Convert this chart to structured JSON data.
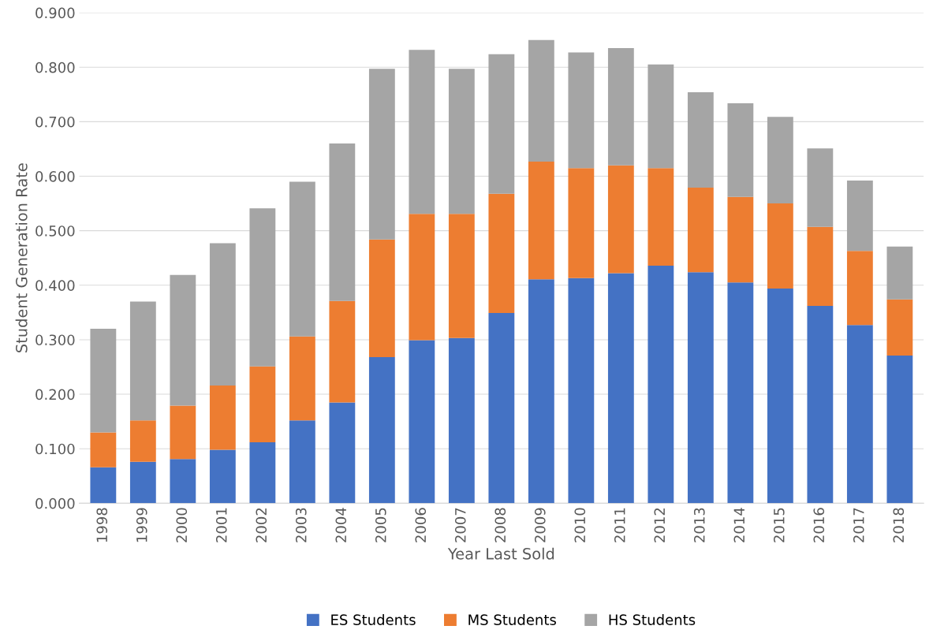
{
  "chart_data": {
    "type": "bar",
    "stacked": true,
    "xlabel": "Year Last Sold",
    "ylabel": "Student Generation Rate",
    "categories": [
      "1998",
      "1999",
      "2000",
      "2001",
      "2002",
      "2003",
      "2004",
      "2005",
      "2006",
      "2007",
      "2008",
      "2009",
      "2010",
      "2011",
      "2012",
      "2013",
      "2014",
      "2015",
      "2016",
      "2017",
      "2018"
    ],
    "series": [
      {
        "name": "ES Students",
        "color": "#4472c4",
        "values": [
          0.066,
          0.076,
          0.081,
          0.098,
          0.112,
          0.152,
          0.185,
          0.268,
          0.299,
          0.303,
          0.349,
          0.411,
          0.413,
          0.422,
          0.436,
          0.424,
          0.405,
          0.394,
          0.362,
          0.327,
          0.271
        ]
      },
      {
        "name": "MS Students",
        "color": "#ed7d31",
        "values": [
          0.064,
          0.076,
          0.098,
          0.118,
          0.139,
          0.154,
          0.186,
          0.216,
          0.232,
          0.228,
          0.219,
          0.216,
          0.202,
          0.198,
          0.179,
          0.155,
          0.157,
          0.156,
          0.145,
          0.136,
          0.103
        ]
      },
      {
        "name": "HS Students",
        "color": "#a5a5a5",
        "values": [
          0.19,
          0.218,
          0.24,
          0.261,
          0.29,
          0.284,
          0.289,
          0.313,
          0.301,
          0.266,
          0.256,
          0.223,
          0.212,
          0.215,
          0.19,
          0.175,
          0.172,
          0.159,
          0.144,
          0.129,
          0.097
        ]
      }
    ],
    "ylim": [
      0,
      0.9
    ],
    "yticks": [
      {
        "value": 0,
        "label": "0.000"
      },
      {
        "value": 0.1,
        "label": "0.100"
      },
      {
        "value": 0.2,
        "label": "0.200"
      },
      {
        "value": 0.3,
        "label": "0.300"
      },
      {
        "value": 0.4,
        "label": "0.400"
      },
      {
        "value": 0.5,
        "label": "0.500"
      },
      {
        "value": 0.6,
        "label": "0.600"
      },
      {
        "value": 0.7,
        "label": "0.700"
      },
      {
        "value": 0.8,
        "label": "0.800"
      },
      {
        "value": 0.9,
        "label": "0.900"
      }
    ],
    "grid": "y",
    "legend": "bottom"
  }
}
